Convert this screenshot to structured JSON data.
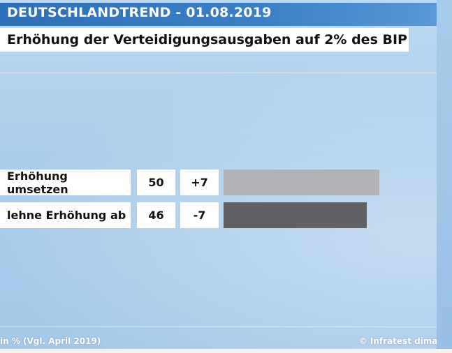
{
  "header": {
    "title": "DEUTSCHLANDTREND - 01.08.2019"
  },
  "subtitle": "Erhöhung der Verteidigungsausgaben auf 2% des BIP",
  "footer": {
    "left": "in % (Vgl. April 2019)",
    "right": "© Infratest dimap"
  },
  "chart_data": {
    "type": "bar",
    "orientation": "horizontal",
    "title": "Erhöhung der Verteidigungsausgaben auf 2% des BIP",
    "categories": [
      "Erhöhung umsetzen",
      "lehne Erhöhung ab"
    ],
    "values": [
      50,
      46
    ],
    "changes": [
      "+7",
      "-7"
    ],
    "bar_colors": [
      "#b1b2b6",
      "#5f6164"
    ],
    "xlim": [
      0,
      53
    ],
    "units": "%"
  }
}
